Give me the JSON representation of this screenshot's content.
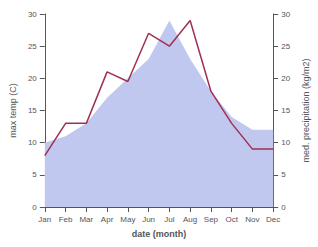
{
  "chart_data": {
    "type": "line",
    "xlabel": "date (month)",
    "ylabel": "max temp (C)",
    "y2label": "med. precipitation (kg/m2)",
    "categories": [
      "Jan",
      "Feb",
      "Mar",
      "Apr",
      "May",
      "Jun",
      "Jul",
      "Aug",
      "Sep",
      "Oct",
      "Nov",
      "Dec"
    ],
    "series": [
      {
        "type": "area",
        "color": "#c0c8f0",
        "axis": "y2",
        "values": [
          10,
          11,
          13,
          17,
          20,
          23,
          29,
          23,
          18,
          14,
          12,
          12
        ]
      },
      {
        "type": "line",
        "color": "#a03050",
        "values": [
          8,
          13,
          13,
          21,
          19.5,
          27,
          25,
          29,
          18,
          13,
          9,
          9
        ]
      }
    ],
    "ylim": [
      0,
      30
    ],
    "yticks": [
      0,
      5,
      10,
      15,
      20,
      25,
      30
    ],
    "y2lim": [
      0,
      30
    ],
    "y2ticks": [
      0,
      5,
      10,
      15,
      20,
      25,
      30
    ],
    "grid": false
  }
}
